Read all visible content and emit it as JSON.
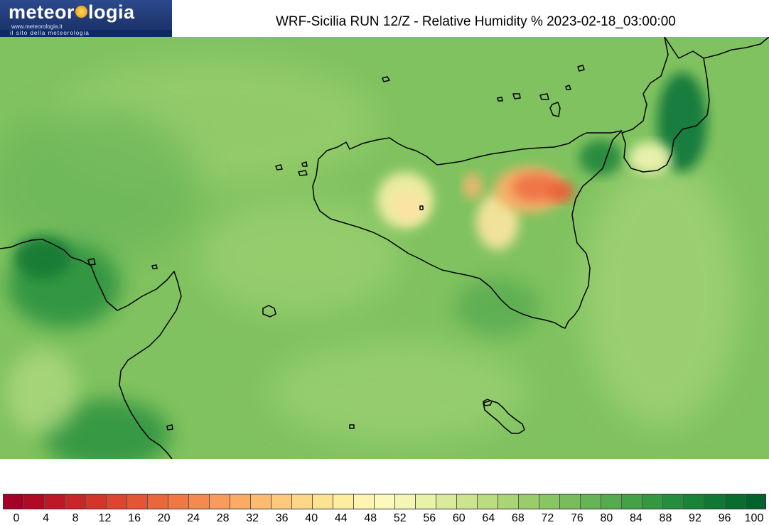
{
  "logo": {
    "brand_left": "meteor",
    "brand_right": "logia",
    "url": "www.meteorologia.it",
    "tagline": "il sito della meteorologia"
  },
  "title": "WRF-Sicilia RUN 12/Z - Relative Humidity % 2023-02-18_03:00:00",
  "colorbar": {
    "colors": [
      "#a50026",
      "#b10a26",
      "#be1827",
      "#c92727",
      "#d3352a",
      "#dc452f",
      "#e45435",
      "#ec663c",
      "#f27745",
      "#f6894f",
      "#f99b5a",
      "#fbab64",
      "#fdbb6f",
      "#fdc97b",
      "#fed688",
      "#fee294",
      "#ffeda0",
      "#fff5b0",
      "#fcf9bd",
      "#f3f6b4",
      "#e8f2a8",
      "#daec9b",
      "#cae58d",
      "#badd81",
      "#aad576",
      "#99cd6c",
      "#88c563",
      "#77bd5b",
      "#66b454",
      "#55ab4d",
      "#44a147",
      "#349841",
      "#258e3c",
      "#198338",
      "#107834",
      "#096d30",
      "#04622c"
    ],
    "tick_labels": [
      "0",
      "4",
      "8",
      "12",
      "16",
      "20",
      "24",
      "28",
      "32",
      "36",
      "40",
      "44",
      "48",
      "52",
      "56",
      "60",
      "64",
      "68",
      "72",
      "76",
      "80",
      "84",
      "88",
      "92",
      "96",
      "100"
    ]
  }
}
